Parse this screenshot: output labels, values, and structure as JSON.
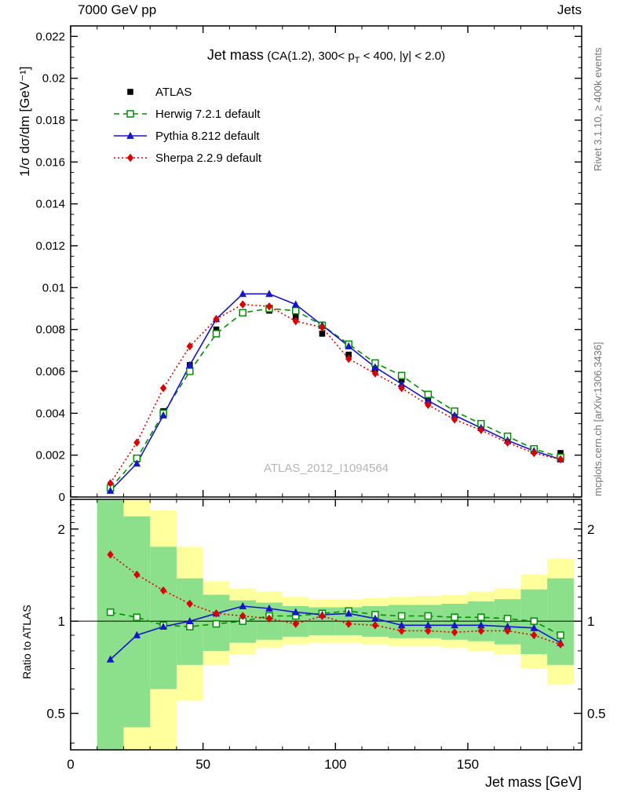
{
  "header": {
    "left": "7000 GeV pp",
    "right": "Jets"
  },
  "watermark": "ATLAS_2012_I1094564",
  "side_text_top": "Rivet 3.1.10, ≥ 400k events",
  "side_text_bottom": "mcplots.cern.ch [arXiv:1306.3436]",
  "chart_data": {
    "type": "line",
    "title": "Jet mass",
    "subtitle_pre": "(CA(1.2), 300< p",
    "subtitle_sub": "T",
    "subtitle_post": " < 400, |y| < 2.0)",
    "xlabel": "Jet mass [GeV]",
    "ylabel": "1/σ dσ/dm [GeV⁻¹]",
    "ratio_label": "Ratio to ATLAS",
    "xlim": [
      0,
      193
    ],
    "ylim_main": [
      0,
      0.0225
    ],
    "ylim_ratio": [
      0.38,
      2.5
    ],
    "ratio_scale": "log",
    "x_ticks_major": [
      0,
      50,
      100,
      150
    ],
    "x_minor_step": 10,
    "y_ticks_main_major": [
      0,
      0.002,
      0.004,
      0.006,
      0.008,
      0.01,
      0.012,
      0.014,
      0.016,
      0.018,
      0.02,
      0.022
    ],
    "y_minor_step_main": 0.0005,
    "y_ticks_ratio_major": [
      0.5,
      1,
      2
    ],
    "bin_width": 10,
    "x": [
      15,
      25,
      35,
      45,
      55,
      65,
      75,
      85,
      95,
      105,
      115,
      125,
      135,
      145,
      155,
      165,
      175,
      185
    ],
    "series": [
      {
        "label": "ATLAS",
        "color": "#000000",
        "marker": "square-filled",
        "line": "none",
        "values": [
          0.0004,
          0.0018,
          0.0041,
          0.0063,
          0.008,
          0.0088,
          0.0089,
          0.0086,
          0.0078,
          0.0068,
          0.0061,
          0.0056,
          0.0047,
          0.004,
          0.0034,
          0.0028,
          0.0023,
          0.0021
        ]
      },
      {
        "label": "Herwig 7.2.1 default",
        "color": "#009000",
        "marker": "square-open",
        "line": "dashed",
        "values": [
          0.00043,
          0.00185,
          0.004,
          0.006,
          0.0078,
          0.0088,
          0.009,
          0.0089,
          0.0082,
          0.0073,
          0.0064,
          0.0058,
          0.0049,
          0.0041,
          0.0035,
          0.0029,
          0.0023,
          0.0019
        ]
      },
      {
        "label": "Pythia 8.212 default",
        "color": "#1515cc",
        "marker": "triangle-filled",
        "line": "solid",
        "values": [
          0.0003,
          0.0016,
          0.0039,
          0.0063,
          0.0085,
          0.0097,
          0.0097,
          0.0092,
          0.0082,
          0.0072,
          0.0062,
          0.0054,
          0.0046,
          0.0039,
          0.0033,
          0.0027,
          0.0022,
          0.0018
        ]
      },
      {
        "label": "Sherpa 2.2.9 default",
        "color": "#dd0000",
        "marker": "diamond-filled",
        "line": "dotted",
        "values": [
          0.00066,
          0.0026,
          0.0052,
          0.0072,
          0.0085,
          0.0092,
          0.0091,
          0.0084,
          0.0081,
          0.0066,
          0.0059,
          0.0052,
          0.0044,
          0.0037,
          0.0032,
          0.0026,
          0.0021,
          0.0018
        ]
      }
    ],
    "ratio_series": [
      {
        "label": "Herwig 7.2.1 default",
        "color": "#009000",
        "marker": "square-open",
        "line": "dashed",
        "values": [
          1.07,
          1.03,
          0.97,
          0.96,
          0.98,
          1.0,
          1.04,
          1.04,
          1.06,
          1.08,
          1.05,
          1.04,
          1.04,
          1.03,
          1.03,
          1.02,
          1.0,
          0.9
        ]
      },
      {
        "label": "Pythia 8.212 default",
        "color": "#1515cc",
        "marker": "triangle-filled",
        "line": "solid",
        "values": [
          0.75,
          0.9,
          0.96,
          1.0,
          1.06,
          1.12,
          1.1,
          1.07,
          1.05,
          1.06,
          1.02,
          0.97,
          0.97,
          0.97,
          0.97,
          0.96,
          0.95,
          0.85
        ]
      },
      {
        "label": "Sherpa 2.2.9 default",
        "color": "#dd0000",
        "marker": "diamond-filled",
        "line": "dotted",
        "values": [
          1.65,
          1.42,
          1.26,
          1.14,
          1.06,
          1.04,
          1.02,
          0.98,
          1.04,
          0.98,
          0.97,
          0.93,
          0.93,
          0.92,
          0.93,
          0.93,
          0.9,
          0.84
        ]
      }
    ],
    "ratio_bands": {
      "yellow": [
        [
          0.38,
          2.5
        ],
        [
          0.38,
          2.5
        ],
        [
          0.38,
          2.3
        ],
        [
          0.55,
          1.75
        ],
        [
          0.72,
          1.35
        ],
        [
          0.78,
          1.28
        ],
        [
          0.82,
          1.25
        ],
        [
          0.84,
          1.2
        ],
        [
          0.85,
          1.18
        ],
        [
          0.85,
          1.18
        ],
        [
          0.84,
          1.19
        ],
        [
          0.83,
          1.2
        ],
        [
          0.83,
          1.21
        ],
        [
          0.82,
          1.22
        ],
        [
          0.8,
          1.25
        ],
        [
          0.78,
          1.28
        ],
        [
          0.7,
          1.42
        ],
        [
          0.62,
          1.6
        ]
      ],
      "green": [
        [
          0.38,
          2.5
        ],
        [
          0.45,
          2.2
        ],
        [
          0.6,
          1.75
        ],
        [
          0.72,
          1.38
        ],
        [
          0.8,
          1.22
        ],
        [
          0.85,
          1.17
        ],
        [
          0.87,
          1.15
        ],
        [
          0.89,
          1.12
        ],
        [
          0.9,
          1.11
        ],
        [
          0.9,
          1.11
        ],
        [
          0.89,
          1.12
        ],
        [
          0.88,
          1.13
        ],
        [
          0.88,
          1.13
        ],
        [
          0.87,
          1.14
        ],
        [
          0.86,
          1.16
        ],
        [
          0.84,
          1.18
        ],
        [
          0.78,
          1.27
        ],
        [
          0.72,
          1.38
        ]
      ]
    },
    "band_colors": {
      "yellow": "#ffff9c",
      "green": "#8ce08c"
    }
  }
}
